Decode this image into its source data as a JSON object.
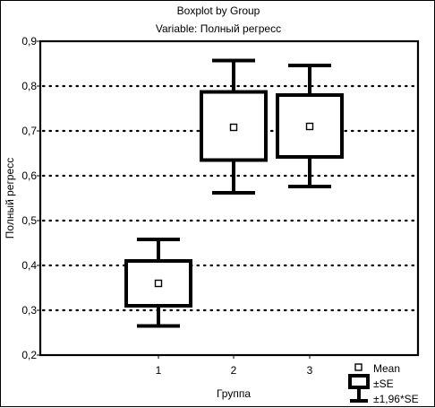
{
  "chart_data": {
    "type": "boxplot",
    "title": "Boxplot by Group",
    "subtitle": "Variable: Полный регресс",
    "xlabel": "Группа",
    "ylabel": "Полный регресс",
    "categories": [
      "1",
      "2",
      "3"
    ],
    "ylim": [
      0.2,
      0.9
    ],
    "yticks": [
      "0,9",
      "0,8",
      "0,7",
      "0,6",
      "0,5",
      "0,4",
      "0,3",
      "0,2"
    ],
    "grid": true,
    "legend_position": "bottom-right",
    "legend": {
      "mean": "Mean",
      "se": "±SE",
      "ci": "±1,96*SE"
    },
    "series": [
      {
        "category": "1",
        "mean": 0.36,
        "se_low": 0.31,
        "se_high": 0.41,
        "ci_low": 0.265,
        "ci_high": 0.458
      },
      {
        "category": "2",
        "mean": 0.708,
        "se_low": 0.635,
        "se_high": 0.787,
        "ci_low": 0.562,
        "ci_high": 0.857
      },
      {
        "category": "3",
        "mean": 0.71,
        "se_low": 0.642,
        "se_high": 0.78,
        "ci_low": 0.576,
        "ci_high": 0.846
      }
    ],
    "colors": {
      "line": "#000000",
      "grid": "#000000",
      "background": "#ffffff"
    }
  }
}
